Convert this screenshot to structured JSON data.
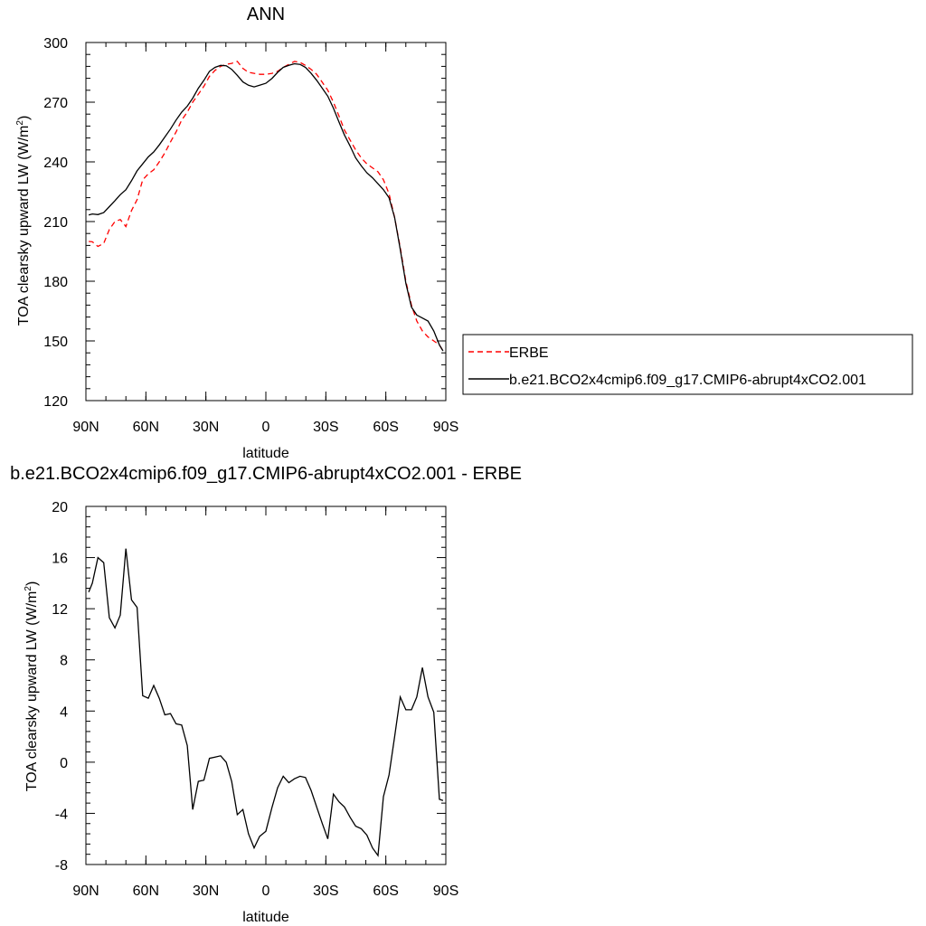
{
  "chart_data": [
    {
      "type": "line",
      "title": "ANN",
      "xlabel": "latitude",
      "ylabel_main": "TOA clearsky upward LW (W/m",
      "ylabel_sup": "2",
      "ylabel_close": ")",
      "xlim": [
        90,
        -90
      ],
      "ylim": [
        120,
        300
      ],
      "xticks": [
        {
          "value": 90,
          "label": "90N"
        },
        {
          "value": 60,
          "label": "60N"
        },
        {
          "value": 30,
          "label": "30N"
        },
        {
          "value": 0,
          "label": "0"
        },
        {
          "value": -30,
          "label": "30S"
        },
        {
          "value": -60,
          "label": "60S"
        },
        {
          "value": -90,
          "label": "90S"
        }
      ],
      "yticks": [
        120,
        150,
        180,
        210,
        240,
        270,
        300
      ],
      "legend_position": "right",
      "series": [
        {
          "name": "ERBE",
          "color": "#ff0000",
          "dash": true,
          "x": [
            88.6,
            86.8,
            84.0,
            81.1,
            78.3,
            75.5,
            72.8,
            70.0,
            67.2,
            64.4,
            61.6,
            58.8,
            56.1,
            53.3,
            50.5,
            47.7,
            44.9,
            42.1,
            39.3,
            36.6,
            33.8,
            31.0,
            28.2,
            25.4,
            22.6,
            19.8,
            17.1,
            14.3,
            11.5,
            8.7,
            5.9,
            3.1,
            0.0,
            -3.1,
            -5.9,
            -8.7,
            -11.5,
            -14.3,
            -17.1,
            -19.8,
            -22.6,
            -25.4,
            -28.2,
            -31.0,
            -33.8,
            -36.6,
            -39.3,
            -42.1,
            -44.9,
            -47.7,
            -50.5,
            -53.3,
            -56.1,
            -58.8,
            -61.6,
            -64.4,
            -67.2,
            -70.0,
            -72.8,
            -75.5,
            -78.3,
            -81.1,
            -84.0,
            -86.8,
            -88.6
          ],
          "y": [
            200,
            199.8,
            197.5,
            199,
            206,
            210,
            211,
            207.5,
            215.5,
            221,
            231,
            234,
            236,
            240,
            244.5,
            250,
            255,
            261,
            265,
            270,
            274,
            278,
            283,
            286,
            288,
            289,
            289.5,
            290.5,
            287,
            285,
            284.5,
            284,
            284,
            284.5,
            285.5,
            287.5,
            289,
            290.5,
            290,
            288.5,
            286.5,
            284,
            280,
            276,
            270,
            263,
            256,
            251,
            246,
            242,
            239,
            237,
            235,
            231,
            224,
            212,
            197,
            180,
            168,
            160,
            155,
            152,
            150,
            148,
            145
          ]
        },
        {
          "name": "b.e21.BCO2x4cmip6.f09_g17.CMIP6-abrupt4xCO2.001",
          "color": "#000000",
          "dash": false,
          "x": [
            88.6,
            86.8,
            84.0,
            81.1,
            78.3,
            75.5,
            72.8,
            70.0,
            67.2,
            64.4,
            61.6,
            58.8,
            56.1,
            53.3,
            50.5,
            47.7,
            44.9,
            42.1,
            39.3,
            36.6,
            33.8,
            31.0,
            28.2,
            25.4,
            22.6,
            19.8,
            17.1,
            14.3,
            11.5,
            8.7,
            5.9,
            3.1,
            0.0,
            -3.1,
            -5.9,
            -8.7,
            -11.5,
            -14.3,
            -17.1,
            -19.8,
            -22.6,
            -25.4,
            -28.2,
            -31.0,
            -33.8,
            -36.6,
            -39.3,
            -42.1,
            -44.9,
            -47.7,
            -50.5,
            -53.3,
            -56.1,
            -58.8,
            -61.6,
            -64.4,
            -67.2,
            -70.0,
            -72.8,
            -75.5,
            -78.3,
            -81.1,
            -84.0,
            -86.8,
            -88.6
          ],
          "y": [
            213.3,
            213.8,
            213.5,
            214.5,
            217.5,
            220.5,
            223.5,
            226,
            230.5,
            235.5,
            239,
            242.5,
            245,
            248.5,
            252.5,
            256.5,
            261,
            265,
            268,
            272,
            277,
            281,
            285.5,
            287.5,
            288.5,
            288.3,
            286.5,
            283.5,
            280.2,
            278.5,
            277.7,
            278.5,
            279.5,
            282,
            285,
            287.5,
            288.5,
            289.3,
            289,
            287.5,
            284.5,
            281,
            277,
            273,
            267,
            260,
            253.5,
            248,
            242,
            238,
            234.5,
            232,
            229,
            226,
            222,
            212,
            196,
            179,
            167,
            163,
            161.5,
            160,
            155,
            148,
            145
          ]
        }
      ]
    },
    {
      "type": "line",
      "title": "b.e21.BCO2x4cmip6.f09_g17.CMIP6-abrupt4xCO2.001 - ERBE",
      "xlabel": "latitude",
      "ylabel_main": "TOA clearsky upward LW (W/m",
      "ylabel_sup": "2",
      "ylabel_close": ")",
      "xlim": [
        90,
        -90
      ],
      "ylim": [
        -8,
        20
      ],
      "xticks": [
        {
          "value": 90,
          "label": "90N"
        },
        {
          "value": 60,
          "label": "60N"
        },
        {
          "value": 30,
          "label": "30N"
        },
        {
          "value": 0,
          "label": "0"
        },
        {
          "value": -30,
          "label": "30S"
        },
        {
          "value": -60,
          "label": "60S"
        },
        {
          "value": -90,
          "label": "90S"
        }
      ],
      "yticks": [
        -8,
        -4,
        0,
        4,
        8,
        12,
        16,
        20
      ],
      "series": [
        {
          "color": "#000000",
          "dash": false,
          "x": [
            88.6,
            86.8,
            84.0,
            81.1,
            78.3,
            75.5,
            72.8,
            70.0,
            67.2,
            64.4,
            61.6,
            58.8,
            56.1,
            53.3,
            50.5,
            47.7,
            44.9,
            42.1,
            39.3,
            36.6,
            33.8,
            31.0,
            28.2,
            25.4,
            22.6,
            19.8,
            17.1,
            14.3,
            11.5,
            8.7,
            5.9,
            3.1,
            0.0,
            -3.1,
            -5.9,
            -8.7,
            -11.5,
            -14.3,
            -17.1,
            -19.8,
            -22.6,
            -25.4,
            -28.2,
            -31.0,
            -33.8,
            -36.6,
            -39.3,
            -42.1,
            -44.9,
            -47.7,
            -50.5,
            -53.3,
            -56.1,
            -58.8,
            -61.6,
            -64.4,
            -67.2,
            -70.0,
            -72.8,
            -75.5,
            -78.3,
            -81.1,
            -84.0,
            -86.8,
            -88.6
          ],
          "y": [
            13.3,
            14.0,
            16.0,
            15.6,
            11.3,
            10.5,
            11.5,
            16.7,
            12.7,
            12.1,
            5.2,
            5.0,
            6.0,
            5.0,
            3.7,
            3.8,
            3.0,
            2.9,
            1.3,
            -3.7,
            -1.5,
            -1.4,
            0.3,
            0.4,
            0.5,
            0.0,
            -1.5,
            -4.1,
            -3.7,
            -5.6,
            -6.7,
            -5.8,
            -5.4,
            -3.5,
            -2.0,
            -1.1,
            -1.6,
            -1.3,
            -1.1,
            -1.2,
            -2.2,
            -3.5,
            -4.8,
            -6.0,
            -2.5,
            -3.1,
            -3.5,
            -4.3,
            -5.0,
            -5.2,
            -5.7,
            -6.7,
            -7.3,
            -2.7,
            -1.0,
            2.0,
            5.1,
            4.1,
            4.1,
            5.1,
            7.4,
            5.1,
            3.9,
            -2.9,
            -3.0
          ]
        }
      ]
    }
  ]
}
